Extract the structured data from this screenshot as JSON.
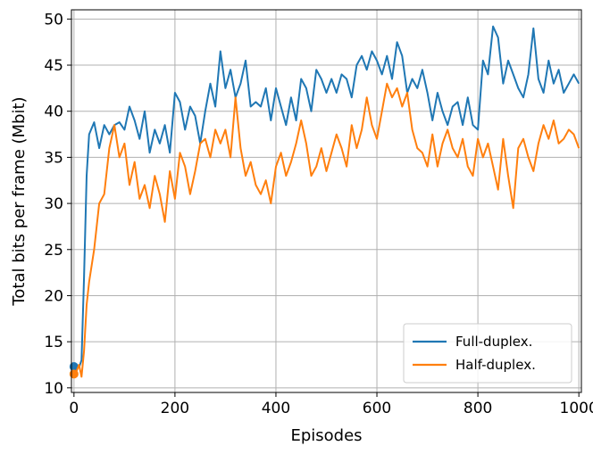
{
  "chart_data": {
    "type": "line",
    "title": "",
    "xlabel": "Episodes",
    "ylabel": "Total bits per frame (Mbit)",
    "xlim": [
      -5,
      1005
    ],
    "ylim": [
      9.5,
      51
    ],
    "xticks": [
      0,
      200,
      400,
      600,
      800,
      1000
    ],
    "yticks": [
      10,
      15,
      20,
      25,
      30,
      35,
      40,
      45,
      50
    ],
    "grid": true,
    "legend_position": "lower-right",
    "series": [
      {
        "name": "Full-duplex.",
        "color": "#1f77b4",
        "x": [
          0,
          5,
          10,
          15,
          20,
          25,
          30,
          40,
          50,
          60,
          70,
          80,
          90,
          100,
          110,
          120,
          130,
          140,
          150,
          160,
          170,
          180,
          190,
          200,
          210,
          220,
          230,
          240,
          250,
          260,
          270,
          280,
          290,
          300,
          310,
          320,
          330,
          340,
          350,
          360,
          370,
          380,
          390,
          400,
          410,
          420,
          430,
          440,
          450,
          460,
          470,
          480,
          490,
          500,
          510,
          520,
          530,
          540,
          550,
          560,
          570,
          580,
          590,
          600,
          610,
          620,
          630,
          640,
          650,
          660,
          670,
          680,
          690,
          700,
          710,
          720,
          730,
          740,
          750,
          760,
          770,
          780,
          790,
          800,
          810,
          820,
          830,
          840,
          850,
          860,
          870,
          880,
          890,
          900,
          910,
          920,
          930,
          940,
          950,
          960,
          970,
          980,
          990,
          1000
        ],
        "y": [
          12.3,
          12.4,
          12.2,
          13,
          22,
          33,
          37.5,
          38.8,
          36,
          38.5,
          37.5,
          38.5,
          38.8,
          38,
          40.5,
          39,
          37,
          40,
          35.5,
          38,
          36.5,
          38.5,
          35.5,
          42,
          41,
          38,
          40.5,
          39.5,
          36.5,
          40,
          43,
          40.5,
          46.5,
          42.5,
          44.5,
          41.5,
          43,
          45.5,
          40.5,
          41,
          40.5,
          42.5,
          39,
          42.5,
          40.5,
          38.5,
          41.5,
          39,
          43.5,
          42.5,
          40,
          44.5,
          43.5,
          42,
          43.5,
          42,
          44,
          43.5,
          41.5,
          45,
          46,
          44.5,
          46.5,
          45.5,
          44,
          46,
          43.5,
          47.5,
          46,
          42,
          43.5,
          42.5,
          44.5,
          42,
          39,
          42,
          40,
          38.5,
          40.5,
          41,
          38.5,
          41.5,
          38.5,
          38,
          45.5,
          44,
          49.2,
          48,
          43,
          45.5,
          44,
          42.5,
          41.5,
          44,
          49,
          43.5,
          42,
          45.5,
          43,
          44.5,
          42,
          43,
          44,
          43
        ]
      },
      {
        "name": "Half-duplex.",
        "color": "#ff7f0e",
        "x": [
          0,
          5,
          10,
          15,
          20,
          25,
          30,
          40,
          50,
          60,
          70,
          80,
          90,
          100,
          110,
          120,
          130,
          140,
          150,
          160,
          170,
          180,
          190,
          200,
          210,
          220,
          230,
          240,
          250,
          260,
          270,
          280,
          290,
          300,
          310,
          320,
          330,
          340,
          350,
          360,
          370,
          380,
          390,
          400,
          410,
          420,
          430,
          440,
          450,
          460,
          470,
          480,
          490,
          500,
          510,
          520,
          530,
          540,
          550,
          560,
          570,
          580,
          590,
          600,
          610,
          620,
          630,
          640,
          650,
          660,
          670,
          680,
          690,
          700,
          710,
          720,
          730,
          740,
          750,
          760,
          770,
          780,
          790,
          800,
          810,
          820,
          830,
          840,
          850,
          860,
          870,
          880,
          890,
          900,
          910,
          920,
          930,
          940,
          950,
          960,
          970,
          980,
          990,
          1000
        ],
        "y": [
          11.5,
          11.8,
          12.5,
          11.2,
          14,
          19,
          21.5,
          25,
          30,
          31,
          36,
          38.5,
          35,
          36.5,
          32,
          34.5,
          30.5,
          32,
          29.5,
          33,
          31,
          28,
          33.5,
          30.5,
          35.5,
          34,
          31,
          33.5,
          36.5,
          37,
          35,
          38,
          36.5,
          38,
          35,
          41.5,
          36,
          33,
          34.5,
          32,
          31,
          32.5,
          30,
          34,
          35.5,
          33,
          34.5,
          36.5,
          39,
          36.5,
          33,
          34,
          36,
          33.5,
          35.5,
          37.5,
          36,
          34,
          38.5,
          36,
          38,
          41.5,
          38.5,
          37,
          40,
          43,
          41.5,
          42.5,
          40.5,
          42,
          38,
          36,
          35.5,
          34,
          37.5,
          34,
          36.5,
          38,
          36,
          35,
          37,
          34,
          33,
          37,
          35,
          36.5,
          34,
          31.5,
          37,
          33,
          29.5,
          36,
          37,
          35,
          33.5,
          36.5,
          38.5,
          37,
          39,
          36.5,
          37,
          38,
          37.5,
          36
        ]
      }
    ]
  }
}
